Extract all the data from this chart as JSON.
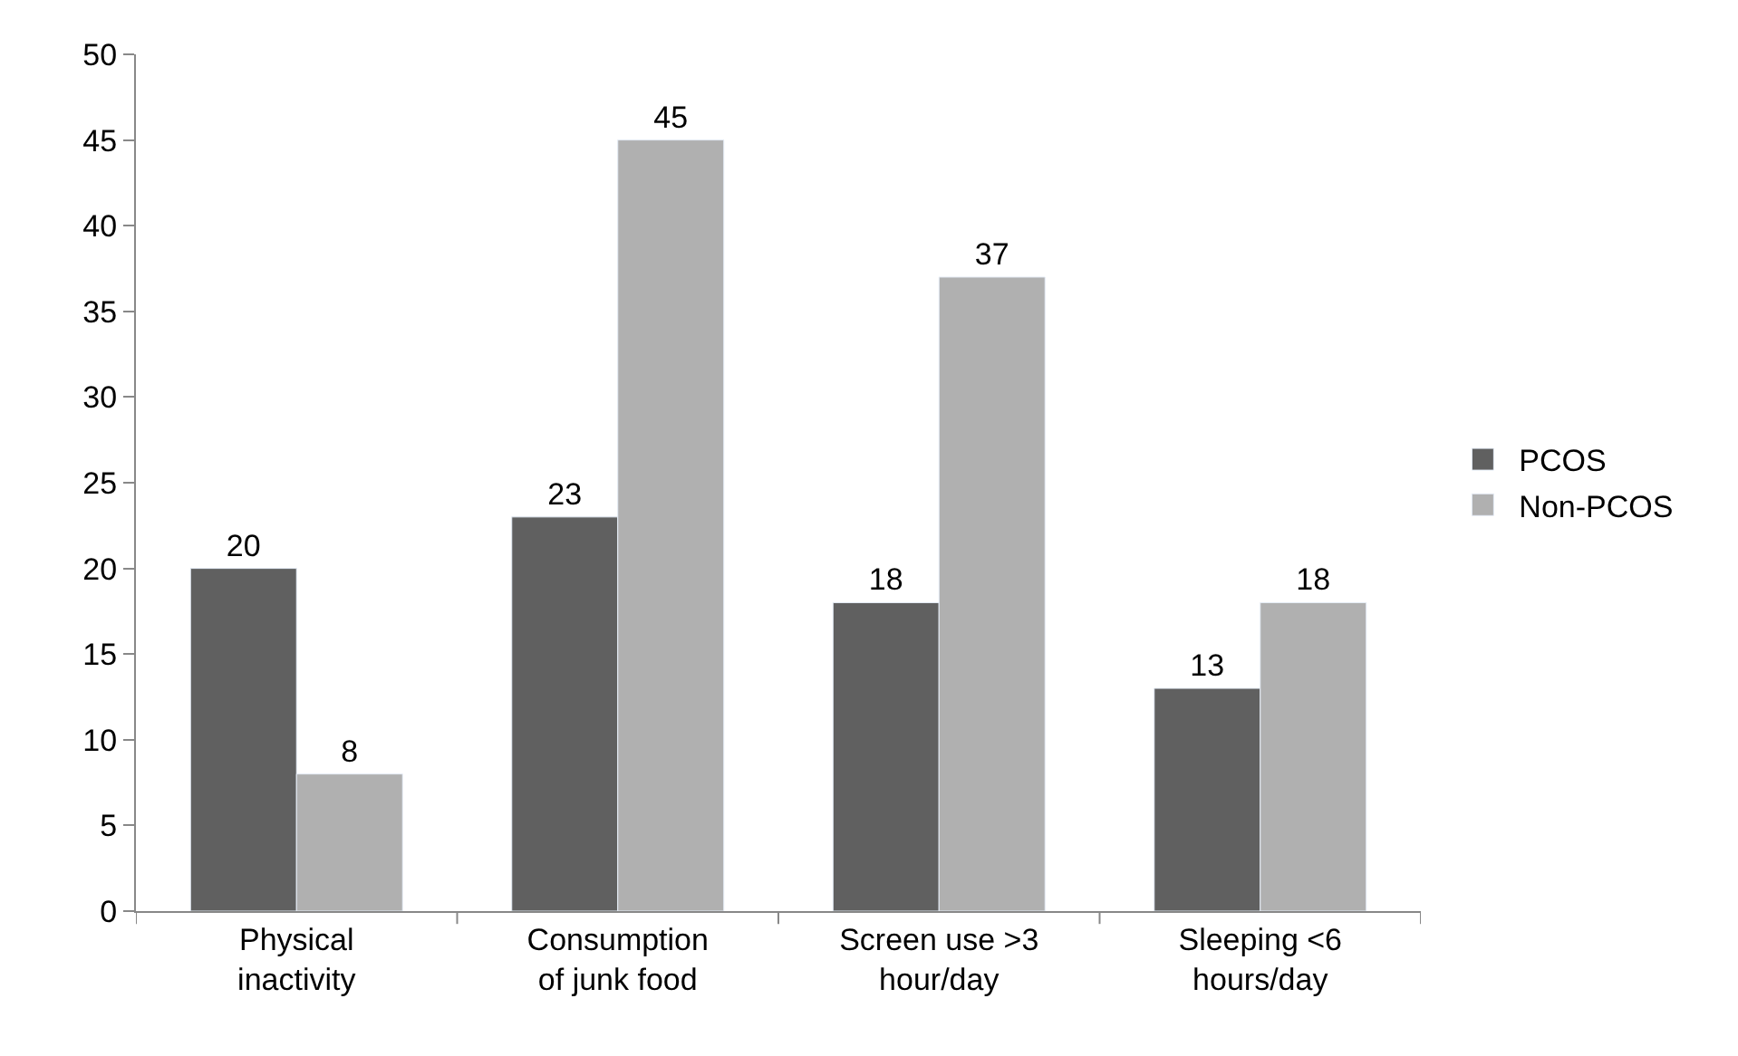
{
  "chart_data": {
    "type": "bar",
    "categories": [
      "Physical inactivity",
      "Consumption of junk food",
      "Screen use >3 hour/day",
      "Sleeping <6 hours/day"
    ],
    "series": [
      {
        "name": "PCOS",
        "color": "#606060",
        "values": [
          20,
          23,
          18,
          13
        ]
      },
      {
        "name": "Non-PCOS",
        "color": "#b0b0b0",
        "values": [
          8,
          45,
          37,
          18
        ]
      }
    ],
    "ylim": [
      0,
      50
    ],
    "yticks": [
      0,
      5,
      10,
      15,
      20,
      25,
      30,
      35,
      40,
      45,
      50
    ],
    "legend": "right",
    "data_labels": true
  }
}
